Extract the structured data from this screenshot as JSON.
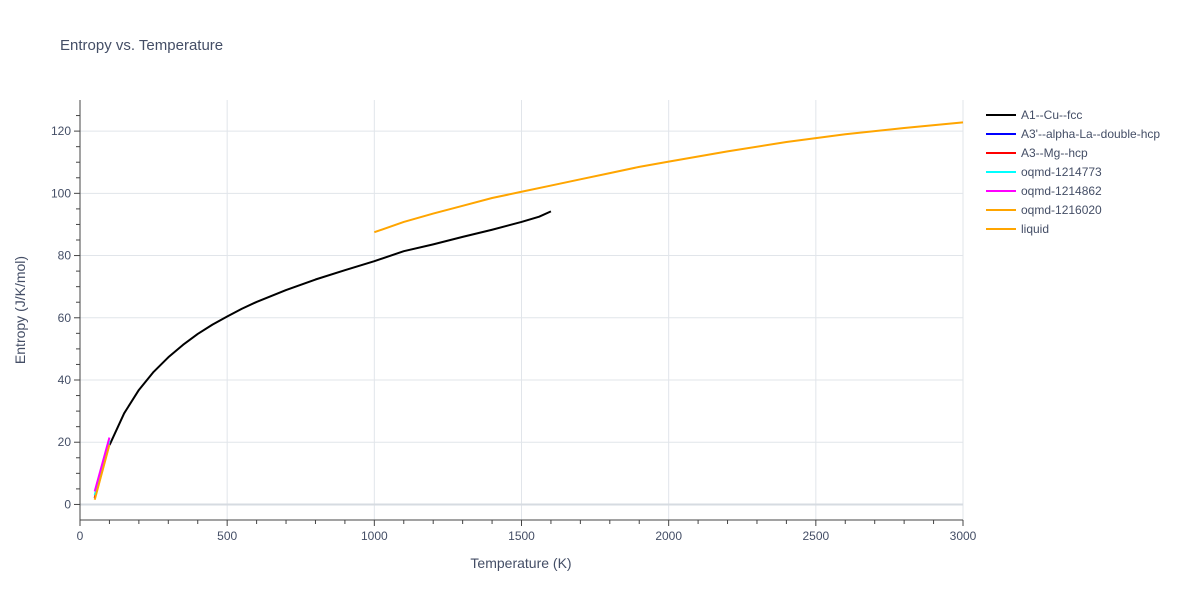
{
  "chart_data": {
    "type": "line",
    "title": "Entropy vs. Temperature",
    "xlabel": "Temperature (K)",
    "ylabel": "Entropy (J/K/mol)",
    "xlim": [
      0,
      3000
    ],
    "ylim": [
      -5,
      130
    ],
    "x_ticks": [
      0,
      500,
      1000,
      1500,
      2000,
      2500,
      3000
    ],
    "y_ticks": [
      0,
      20,
      40,
      60,
      80,
      100,
      120
    ],
    "grid": true,
    "legend_position": "right",
    "series": [
      {
        "name": "A1--Cu--fcc",
        "color": "#000000",
        "x": [
          100,
          150,
          200,
          250,
          300,
          350,
          400,
          450,
          500,
          550,
          600,
          700,
          800,
          900,
          1000,
          1100,
          1200,
          1300,
          1400,
          1500,
          1560,
          1600
        ],
        "y": [
          19.0,
          29.3,
          36.8,
          42.6,
          47.3,
          51.3,
          54.8,
          57.8,
          60.4,
          62.9,
          65.1,
          68.9,
          72.3,
          75.3,
          78.2,
          81.4,
          83.6,
          86.0,
          88.3,
          90.8,
          92.5,
          94.2
        ]
      },
      {
        "name": "A3'--alpha-La--double-hcp",
        "color": "#0000ff",
        "x": [
          50,
          100
        ],
        "y": [
          2.0,
          19.5
        ]
      },
      {
        "name": "A3--Mg--hcp",
        "color": "#ff0000",
        "x": [
          50,
          100
        ],
        "y": [
          2.2,
          20.0
        ]
      },
      {
        "name": "oqmd-1214773",
        "color": "#00ffff",
        "x": [
          50,
          100
        ],
        "y": [
          3.0,
          20.5
        ]
      },
      {
        "name": "oqmd-1214862",
        "color": "#ff00ff",
        "x": [
          50,
          100
        ],
        "y": [
          4.2,
          21.5
        ]
      },
      {
        "name": "oqmd-1216020",
        "color": "#ffa500",
        "x": [
          50,
          100
        ],
        "y": [
          1.5,
          19.2
        ]
      },
      {
        "name": "liquid",
        "color": "#ffa500",
        "x": [
          1000,
          1100,
          1200,
          1300,
          1400,
          1500,
          1600,
          1700,
          1800,
          1900,
          2000,
          2200,
          2400,
          2600,
          2800,
          3000
        ],
        "y": [
          87.5,
          90.8,
          93.5,
          96.0,
          98.5,
          100.5,
          102.5,
          104.5,
          106.5,
          108.5,
          110.2,
          113.5,
          116.5,
          119.0,
          121.0,
          122.8
        ]
      }
    ]
  }
}
